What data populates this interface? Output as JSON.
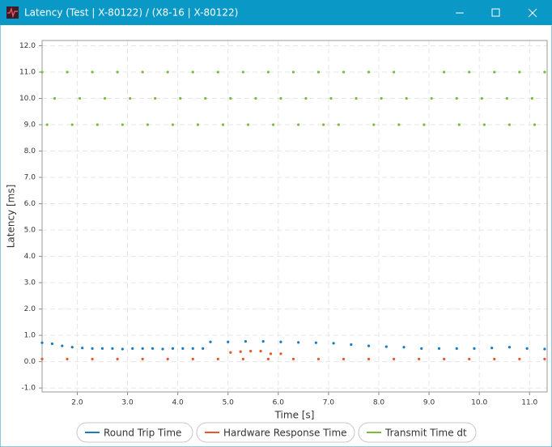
{
  "window": {
    "title": "Latency (Test | X-80122) / (X8-16 | X-80122)"
  },
  "chart_data": {
    "type": "scatter",
    "x_label": "Time [s]",
    "y_label": "Latency [ms]",
    "xlim": [
      1.3,
      11.35
    ],
    "ylim": [
      -1.15,
      12.2
    ],
    "grid": true,
    "xticks": [
      {
        "value": 2,
        "label": "2.0"
      },
      {
        "value": 3,
        "label": "3.0"
      },
      {
        "value": 4,
        "label": "4.0"
      },
      {
        "value": 5,
        "label": "5.0"
      },
      {
        "value": 6,
        "label": "6.0"
      },
      {
        "value": 7,
        "label": "7.0"
      },
      {
        "value": 8,
        "label": "8.0"
      },
      {
        "value": 9,
        "label": "9.0"
      },
      {
        "value": 10,
        "label": "10.0"
      },
      {
        "value": 11,
        "label": "11.0"
      }
    ],
    "yticks": [
      {
        "value": -1,
        "label": "-1.0"
      },
      {
        "value": 0,
        "label": "0.0"
      },
      {
        "value": 1,
        "label": "1.0"
      },
      {
        "value": 2,
        "label": "2.0"
      },
      {
        "value": 3,
        "label": "3.0"
      },
      {
        "value": 4,
        "label": "4.0"
      },
      {
        "value": 5,
        "label": "5.0"
      },
      {
        "value": 6,
        "label": "6.0"
      },
      {
        "value": 7,
        "label": "7.0"
      },
      {
        "value": 8,
        "label": "8.0"
      },
      {
        "value": 9,
        "label": "9.0"
      },
      {
        "value": 10,
        "label": "10.0"
      },
      {
        "value": 11,
        "label": "11.0"
      },
      {
        "value": 12,
        "label": "12.0"
      }
    ],
    "series": [
      {
        "name": "Round Trip Time",
        "color": "#1a7bbf",
        "x": [
          1.3,
          1.5,
          1.7,
          1.9,
          2.1,
          2.3,
          2.5,
          2.7,
          2.9,
          3.1,
          3.3,
          3.5,
          3.7,
          3.9,
          4.1,
          4.3,
          4.5,
          4.65,
          5.0,
          5.35,
          5.7,
          6.05,
          6.4,
          6.75,
          7.1,
          7.45,
          7.8,
          8.15,
          8.5,
          8.85,
          9.2,
          9.55,
          9.9,
          10.25,
          10.6,
          10.95,
          11.3
        ],
        "values": [
          0.72,
          0.68,
          0.6,
          0.55,
          0.52,
          0.5,
          0.5,
          0.5,
          0.48,
          0.5,
          0.5,
          0.5,
          0.48,
          0.5,
          0.5,
          0.5,
          0.5,
          0.75,
          0.75,
          0.77,
          0.77,
          0.75,
          0.73,
          0.72,
          0.7,
          0.65,
          0.6,
          0.57,
          0.55,
          0.5,
          0.5,
          0.5,
          0.5,
          0.52,
          0.55,
          0.5,
          0.48
        ]
      },
      {
        "name": "Hardware Response Time",
        "color": "#e8562a",
        "x": [
          1.3,
          1.8,
          2.3,
          2.8,
          3.3,
          3.8,
          4.3,
          4.8,
          5.3,
          5.8,
          6.3,
          6.8,
          7.3,
          7.8,
          8.3,
          8.8,
          9.3,
          9.8,
          10.3,
          10.8,
          11.3,
          5.05,
          5.25,
          5.45,
          5.65,
          5.85,
          6.05
        ],
        "values": [
          0.1,
          0.1,
          0.1,
          0.1,
          0.1,
          0.1,
          0.1,
          0.1,
          0.1,
          0.1,
          0.1,
          0.1,
          0.1,
          0.1,
          0.1,
          0.1,
          0.1,
          0.1,
          0.1,
          0.1,
          0.1,
          0.35,
          0.38,
          0.4,
          0.4,
          0.3,
          0.3
        ]
      },
      {
        "name": "Transmit Time dt",
        "color": "#7cba3c",
        "x": [
          1.3,
          1.8,
          2.3,
          2.8,
          3.3,
          3.8,
          4.3,
          4.8,
          5.3,
          5.8,
          6.3,
          6.8,
          7.3,
          7.8,
          8.3,
          9.3,
          9.8,
          10.3,
          10.8,
          11.3,
          1.55,
          2.05,
          2.55,
          3.05,
          3.55,
          4.05,
          4.55,
          5.05,
          5.55,
          6.05,
          6.55,
          7.05,
          7.55,
          8.05,
          8.55,
          9.05,
          9.55,
          10.05,
          10.55,
          11.05,
          1.4,
          1.9,
          2.4,
          2.9,
          3.4,
          3.9,
          4.4,
          4.9,
          5.4,
          5.9,
          6.4,
          6.9,
          7.2,
          7.9,
          8.4,
          8.9,
          9.6,
          10.1,
          10.6,
          11.1
        ],
        "values": [
          11,
          11,
          11,
          11,
          11,
          11,
          11,
          11,
          11,
          11,
          11,
          11,
          11,
          11,
          11,
          11,
          11,
          11,
          11,
          11,
          10,
          10,
          10,
          10,
          10,
          10,
          10,
          10,
          10,
          10,
          10,
          10,
          10,
          10,
          10,
          10,
          10,
          10,
          10,
          10,
          9,
          9,
          9,
          9,
          9,
          9,
          9,
          9,
          9,
          9,
          9,
          9,
          9,
          9,
          9,
          9,
          9,
          9,
          9,
          9
        ]
      }
    ]
  }
}
